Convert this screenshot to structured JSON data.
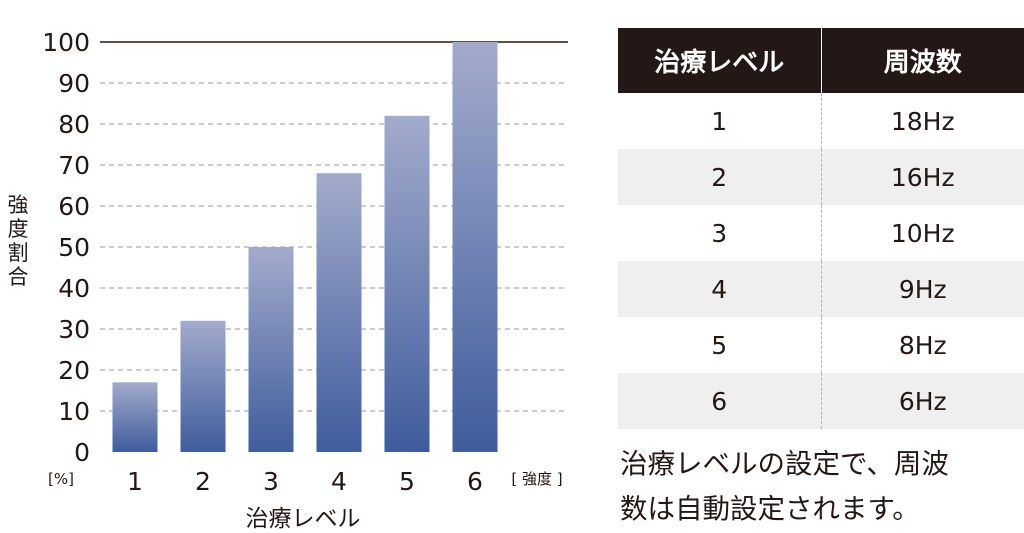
{
  "chart_data": {
    "type": "bar",
    "categories": [
      "1",
      "2",
      "3",
      "4",
      "5",
      "6"
    ],
    "values": [
      17,
      32,
      50,
      68,
      82,
      100
    ],
    "ylim": [
      0,
      100
    ],
    "yticks": [
      "0",
      "10",
      "20",
      "30",
      "40",
      "50",
      "60",
      "70",
      "80",
      "90",
      "100"
    ],
    "ylabel": "強度割合",
    "yunit": "[%]",
    "xlabel": "治療レベル",
    "xunit": "[ 強度 ]",
    "grid": true,
    "bar_color_top": "#a3abcc",
    "bar_color_bottom": "#3f5c9c"
  },
  "table": {
    "headers": [
      "治療レベル",
      "周波数"
    ],
    "rows": [
      [
        "1",
        "18Hz"
      ],
      [
        "2",
        "16Hz"
      ],
      [
        "3",
        "10Hz"
      ],
      [
        "4",
        "9Hz"
      ],
      [
        "5",
        "8Hz"
      ],
      [
        "6",
        "6Hz"
      ]
    ]
  },
  "note": {
    "line1": "治療レベルの設定で、周波",
    "line2": "数は自動設定されます。"
  }
}
